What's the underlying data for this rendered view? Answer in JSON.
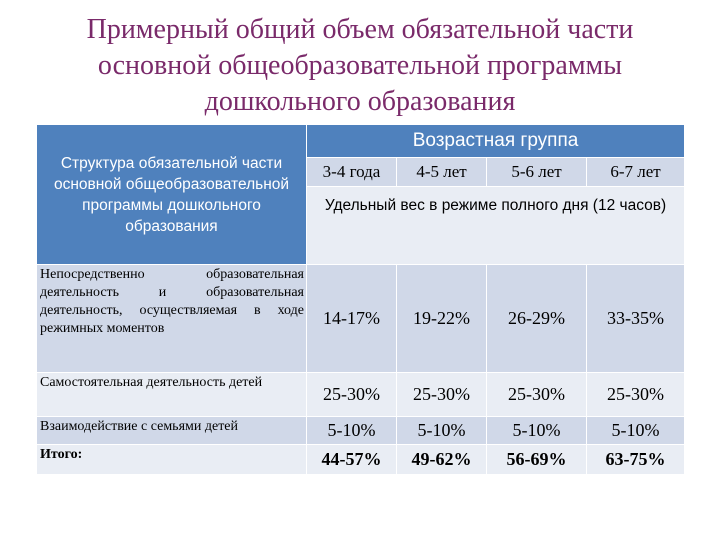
{
  "title": {
    "line1": "Примерный общий объем обязательной части",
    "line2": "основной общеобразовательной программы",
    "line3": "дошкольного образования"
  },
  "table": {
    "structure_header": "Структура обязательной части основной общеобразовательной программы дошкольного образования",
    "age_group_header": "Возрастная группа",
    "ages": [
      "3-4 года",
      "4-5 лет",
      "5-6 лет",
      "6-7 лет"
    ],
    "weight_header": "Удельный вес в режиме полного дня (12 часов)",
    "rows": [
      {
        "label": "Непосредственно образовательная деятельность и образовательная деятельность, осуществляемая в ходе режимных моментов",
        "values": [
          "14-17%",
          "19-22%",
          "26-29%",
          "33-35%"
        ]
      },
      {
        "label": "Самостоятельная деятельность детей",
        "values": [
          "25-30%",
          "25-30%",
          "25-30%",
          "25-30%"
        ]
      },
      {
        "label": "Взаимодействие с семьями детей",
        "values": [
          "5-10%",
          "5-10%",
          "5-10%",
          "5-10%"
        ]
      }
    ],
    "total": {
      "label": "Итого:",
      "values": [
        "44-57%",
        "49-62%",
        "56-69%",
        "63-75%"
      ]
    }
  }
}
